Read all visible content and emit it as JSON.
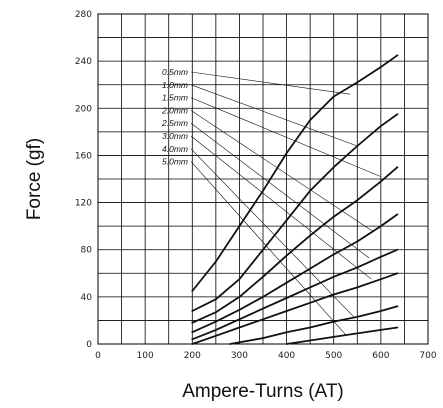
{
  "chart_data": {
    "type": "line",
    "title": "",
    "xlabel": "Ampere-Turns (AT)",
    "ylabel": "Force (gf)",
    "xlim": [
      0,
      700
    ],
    "ylim": [
      0,
      280
    ],
    "xticks": [
      0,
      100,
      200,
      300,
      400,
      500,
      600,
      700
    ],
    "yticks": [
      0,
      40,
      80,
      120,
      160,
      200,
      240,
      280
    ],
    "x_grid_values": [
      0,
      50,
      100,
      150,
      200,
      250,
      300,
      350,
      400,
      450,
      500,
      550,
      600,
      650,
      700
    ],
    "y_grid_values": [
      20,
      40,
      60,
      80,
      100,
      120,
      140,
      160,
      180,
      200,
      220,
      240,
      260
    ],
    "grid": true,
    "legend_placement": "inside-left, labels with leader lines",
    "series": [
      {
        "name": "0.5mm",
        "points": [
          [
            200,
            45
          ],
          [
            250,
            70
          ],
          [
            300,
            100
          ],
          [
            350,
            130
          ],
          [
            400,
            162
          ],
          [
            450,
            190
          ],
          [
            500,
            210
          ],
          [
            550,
            222
          ],
          [
            600,
            235
          ],
          [
            635,
            245
          ]
        ],
        "label_target": [
          535,
          212
        ]
      },
      {
        "name": "1.0mm",
        "points": [
          [
            200,
            28
          ],
          [
            250,
            38
          ],
          [
            300,
            55
          ],
          [
            350,
            80
          ],
          [
            400,
            105
          ],
          [
            450,
            130
          ],
          [
            500,
            150
          ],
          [
            550,
            168
          ],
          [
            600,
            185
          ],
          [
            635,
            195
          ]
        ],
        "label_target": [
          550,
          168
        ]
      },
      {
        "name": "1.5mm",
        "points": [
          [
            200,
            18
          ],
          [
            250,
            27
          ],
          [
            300,
            40
          ],
          [
            350,
            57
          ],
          [
            400,
            75
          ],
          [
            450,
            92
          ],
          [
            500,
            108
          ],
          [
            550,
            122
          ],
          [
            600,
            138
          ],
          [
            635,
            150
          ]
        ],
        "label_target": [
          600,
          142
        ]
      },
      {
        "name": "2.0mm",
        "points": [
          [
            200,
            10
          ],
          [
            250,
            19
          ],
          [
            300,
            29
          ],
          [
            350,
            40
          ],
          [
            400,
            52
          ],
          [
            450,
            64
          ],
          [
            500,
            76
          ],
          [
            550,
            87
          ],
          [
            600,
            100
          ],
          [
            635,
            110
          ]
        ],
        "label_target": [
          585,
          95
        ]
      },
      {
        "name": "2.5mm",
        "points": [
          [
            200,
            4
          ],
          [
            250,
            12
          ],
          [
            300,
            21
          ],
          [
            350,
            30
          ],
          [
            400,
            39
          ],
          [
            450,
            48
          ],
          [
            500,
            57
          ],
          [
            550,
            65
          ],
          [
            600,
            74
          ],
          [
            635,
            80
          ]
        ],
        "label_target": [
          575,
          73
        ]
      },
      {
        "name": "3.0mm",
        "points": [
          [
            200,
            0
          ],
          [
            250,
            7
          ],
          [
            300,
            14
          ],
          [
            350,
            21
          ],
          [
            400,
            28
          ],
          [
            450,
            35
          ],
          [
            500,
            42
          ],
          [
            550,
            48
          ],
          [
            600,
            55
          ],
          [
            635,
            60
          ]
        ],
        "label_target": [
          580,
          55
        ]
      },
      {
        "name": "4.0mm",
        "points": [
          [
            280,
            0
          ],
          [
            350,
            5
          ],
          [
            400,
            10
          ],
          [
            450,
            14
          ],
          [
            500,
            19
          ],
          [
            550,
            23
          ],
          [
            600,
            28
          ],
          [
            635,
            32
          ]
        ],
        "label_target": [
          545,
          22
        ]
      },
      {
        "name": "5.0mm",
        "points": [
          [
            400,
            0
          ],
          [
            450,
            3
          ],
          [
            500,
            6
          ],
          [
            550,
            9
          ],
          [
            600,
            12
          ],
          [
            635,
            14
          ]
        ],
        "label_target": [
          525,
          8
        ]
      }
    ]
  }
}
